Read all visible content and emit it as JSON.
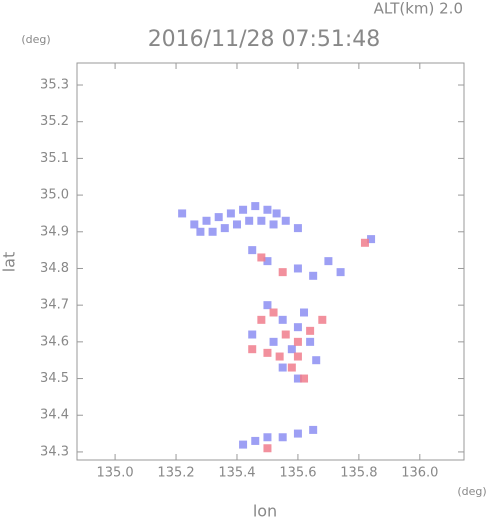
{
  "chart_data": {
    "type": "scatter",
    "title": "2016/11/28 07:51:48",
    "subtitle": "ALT(km) 2.0",
    "y_unit": "(deg)",
    "x_unit": "(deg)",
    "xlabel": "lon",
    "ylabel": "lat",
    "xlim": [
      134.875,
      136.145
    ],
    "ylim": [
      34.278,
      35.36
    ],
    "xticks": [
      {
        "value": 135,
        "label": "135.0"
      },
      135.2,
      135.4,
      135.6,
      135.8,
      {
        "value": 136,
        "label": "136.0"
      }
    ],
    "yticks": [
      34.3,
      34.4,
      34.5,
      34.6,
      34.7,
      34.8,
      34.9,
      {
        "value": 35,
        "label": "35.0"
      },
      35.1,
      35.2,
      35.3
    ],
    "series": [
      {
        "color": "#8c8ef2",
        "x": [
          135.22,
          135.26,
          135.3,
          135.34,
          135.38,
          135.42,
          135.46,
          135.5,
          135.53,
          135.36,
          135.4,
          135.44,
          135.48,
          135.52,
          135.56,
          135.6,
          135.32,
          135.28,
          135.45,
          135.5,
          135.6,
          135.65,
          135.7,
          135.74,
          135.84,
          135.5,
          135.55,
          135.6,
          135.45,
          135.52,
          135.58,
          135.64,
          135.55,
          135.6,
          135.66,
          135.62,
          135.42,
          135.46,
          135.5,
          135.55,
          135.6,
          135.65
        ],
        "values": [
          34.95,
          34.92,
          34.93,
          34.94,
          34.95,
          34.96,
          34.97,
          34.96,
          34.95,
          34.91,
          34.92,
          34.93,
          34.93,
          34.92,
          34.93,
          34.91,
          34.9,
          34.9,
          34.85,
          34.82,
          34.8,
          34.78,
          34.82,
          34.79,
          34.88,
          34.7,
          34.66,
          34.64,
          34.62,
          34.6,
          34.58,
          34.6,
          34.53,
          34.5,
          34.55,
          34.68,
          34.32,
          34.33,
          34.34,
          34.34,
          34.35,
          34.36
        ]
      },
      {
        "color": "#f07c8c",
        "x": [
          135.48,
          135.55,
          135.82,
          135.52,
          135.48,
          135.56,
          135.6,
          135.54,
          135.58,
          135.62,
          135.64,
          135.5,
          135.45,
          135.6,
          135.5,
          135.68
        ],
        "values": [
          34.83,
          34.79,
          34.87,
          34.68,
          34.66,
          34.62,
          34.6,
          34.56,
          34.53,
          34.5,
          34.63,
          34.57,
          34.58,
          34.56,
          34.31,
          34.66
        ]
      }
    ]
  }
}
